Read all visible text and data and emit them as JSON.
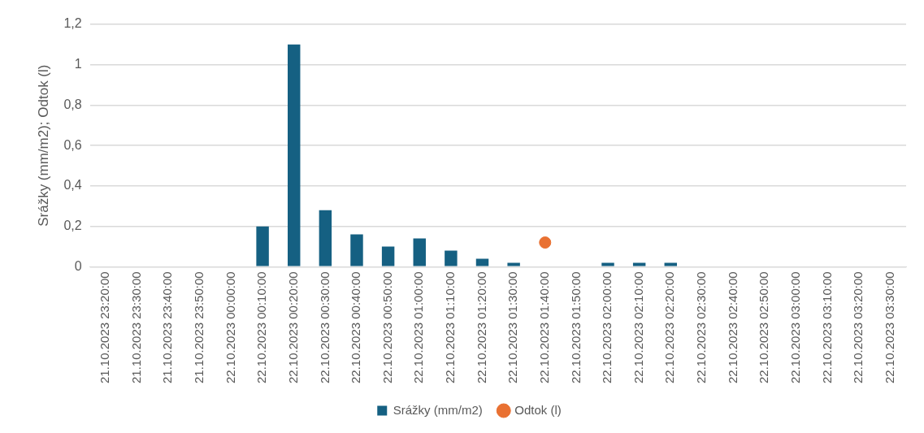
{
  "chart_data": {
    "type": "bar",
    "ylabel": "Srážky (mm/m2); Odtok (l)",
    "categories": [
      "21.10.2023 23:20:00",
      "21.10.2023 23:30:00",
      "21.10.2023 23:40:00",
      "21.10.2023 23:50:00",
      "22.10.2023 00:00:00",
      "22.10.2023 00:10:00",
      "22.10.2023 00:20:00",
      "22.10.2023 00:30:00",
      "22.10.2023 00:40:00",
      "22.10.2023 00:50:00",
      "22.10.2023 01:00:00",
      "22.10.2023 01:10:00",
      "22.10.2023 01:20:00",
      "22.10.2023 01:30:00",
      "22.10.2023 01:40:00",
      "22.10.2023 01:50:00",
      "22.10.2023 02:00:00",
      "22.10.2023 02:10:00",
      "22.10.2023 02:20:00",
      "22.10.2023 02:30:00",
      "22.10.2023 02:40:00",
      "22.10.2023 02:50:00",
      "22.10.2023 03:00:00",
      "22.10.2023 03:10:00",
      "22.10.2023 03:20:00",
      "22.10.2023 03:30:00"
    ],
    "series": [
      {
        "name": "Srážky (mm/m2)",
        "color": "#156082",
        "values": [
          0,
          0,
          0,
          0,
          0,
          0.2,
          1.1,
          0.28,
          0.16,
          0.1,
          0.14,
          0.08,
          0.04,
          0.02,
          0,
          0,
          0.02,
          0.02,
          0.02,
          0,
          0,
          0,
          0,
          0,
          0,
          0
        ]
      },
      {
        "name": "Odtok (l)",
        "type": "scatter",
        "color": "#e97132",
        "marker": "circle",
        "values": [
          null,
          null,
          null,
          null,
          null,
          null,
          null,
          null,
          null,
          null,
          null,
          null,
          null,
          null,
          0.12,
          null,
          null,
          null,
          null,
          null,
          null,
          null,
          null,
          null,
          null,
          null
        ]
      }
    ],
    "ylim": [
      0,
      1.2
    ],
    "yticks": [
      {
        "value": 0,
        "label": "0"
      },
      {
        "value": 0.2,
        "label": "0,2"
      },
      {
        "value": 0.4,
        "label": "0,4"
      },
      {
        "value": 0.6,
        "label": "0,6"
      },
      {
        "value": 0.8,
        "label": "0,8"
      },
      {
        "value": 1,
        "label": "1"
      },
      {
        "value": 1.2,
        "label": "1,2"
      }
    ],
    "grid": "y",
    "legend": "bottom"
  }
}
